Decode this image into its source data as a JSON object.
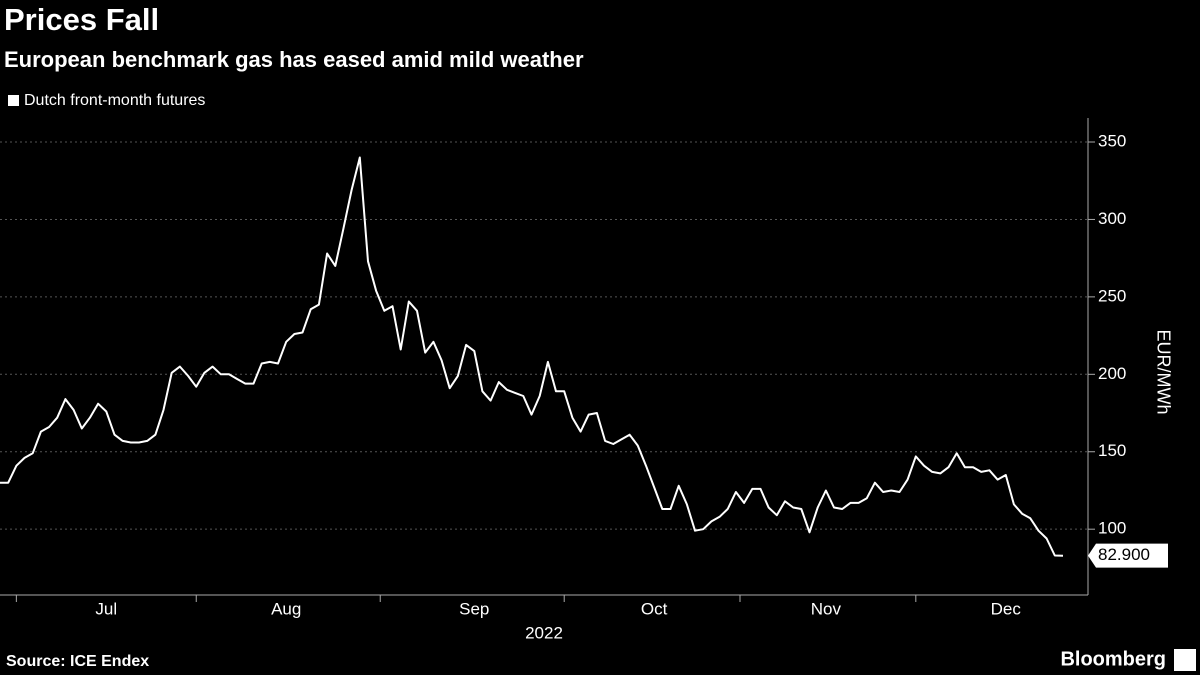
{
  "chart_data": {
    "type": "line",
    "title": "Prices Fall",
    "subtitle": "European benchmark gas has eased amid mild weather",
    "x_label": "2022",
    "y_label": "EUR/MWh",
    "source": "Source: ICE Endex",
    "brand": "Bloomberg",
    "categories": [
      null,
      null,
      null,
      null,
      null,
      null,
      null,
      null,
      null,
      null,
      null,
      null,
      null,
      "Jul",
      null,
      null,
      null,
      null,
      null,
      null,
      null,
      null,
      null,
      null,
      null,
      null,
      null,
      null,
      null,
      null,
      null,
      null,
      null,
      null,
      null,
      "Aug",
      null,
      null,
      null,
      null,
      null,
      null,
      null,
      null,
      null,
      null,
      null,
      null,
      null,
      null,
      null,
      null,
      null,
      null,
      null,
      null,
      null,
      null,
      "Sep",
      null,
      null,
      null,
      null,
      null,
      null,
      null,
      null,
      null,
      null,
      null,
      null,
      null,
      null,
      null,
      null,
      null,
      null,
      null,
      null,
      null,
      "Oct",
      null,
      null,
      null,
      null,
      null,
      null,
      null,
      null,
      null,
      null,
      null,
      null,
      null,
      null,
      null,
      null,
      null,
      null,
      null,
      null,
      "Nov",
      null,
      null,
      null,
      null,
      null,
      null,
      null,
      null,
      null,
      null,
      null,
      null,
      null,
      null,
      null,
      null,
      null,
      null,
      null,
      null,
      null,
      "Dec",
      null,
      null,
      null,
      null,
      null,
      null,
      null
    ],
    "series": [
      {
        "name": "Dutch front-month futures",
        "color": "#ffffff",
        "values": [
          130,
          130,
          141,
          146,
          149,
          163,
          166,
          172,
          184,
          177,
          165,
          172,
          181,
          176,
          161,
          157,
          156,
          156,
          157,
          161,
          177,
          201,
          205,
          199,
          192,
          201,
          205,
          200,
          200,
          197,
          194,
          194,
          207,
          208,
          207,
          221,
          226,
          227,
          242,
          245,
          278,
          270,
          294,
          319,
          340,
          273,
          254,
          241,
          244,
          216,
          247,
          241,
          214,
          221,
          209,
          191,
          199,
          219,
          215,
          189,
          183,
          195,
          190,
          188,
          186,
          174,
          186,
          208,
          189,
          189,
          172,
          163,
          174,
          175,
          157,
          155,
          158,
          161,
          154,
          141,
          127,
          113,
          113,
          128,
          116,
          99,
          100,
          105,
          108,
          113,
          124,
          117,
          126,
          126,
          114,
          109,
          118,
          114,
          113,
          98,
          114,
          125,
          114,
          113,
          117,
          117,
          120,
          130,
          124,
          125,
          124,
          132,
          147,
          141,
          137,
          136,
          140,
          149,
          140,
          140,
          137,
          138,
          132,
          135,
          116,
          110,
          107,
          99,
          94,
          83,
          82.9
        ],
        "value_labels": [
          null,
          null,
          null,
          null,
          null,
          null,
          null,
          null,
          null,
          null,
          null,
          null,
          null,
          null,
          null,
          null,
          null,
          null,
          null,
          null,
          null,
          null,
          null,
          null,
          null,
          null,
          null,
          null,
          null,
          null,
          null,
          null,
          null,
          null,
          null,
          null,
          null,
          null,
          null,
          null,
          null,
          null,
          null,
          null,
          null,
          null,
          null,
          null,
          null,
          null,
          null,
          null,
          null,
          null,
          null,
          null,
          null,
          null,
          null,
          null,
          null,
          null,
          null,
          null,
          null,
          null,
          null,
          null,
          null,
          null,
          null,
          null,
          null,
          null,
          null,
          null,
          null,
          null,
          null,
          null,
          null,
          null,
          null,
          null,
          null,
          null,
          null,
          null,
          null,
          null,
          null,
          null,
          null,
          null,
          null,
          null,
          null,
          null,
          null,
          null,
          null,
          null,
          null,
          null,
          null,
          null,
          null,
          null,
          null,
          null,
          null,
          null,
          null,
          null,
          null,
          null,
          null,
          null,
          null,
          null,
          null,
          null,
          null,
          null,
          null,
          null,
          null,
          null,
          null,
          null,
          "82.900"
        ]
      }
    ],
    "ylim": [
      57.5,
      365.5
    ],
    "yticks": [
      100,
      150,
      200,
      250,
      300,
      350
    ],
    "grid": true
  }
}
